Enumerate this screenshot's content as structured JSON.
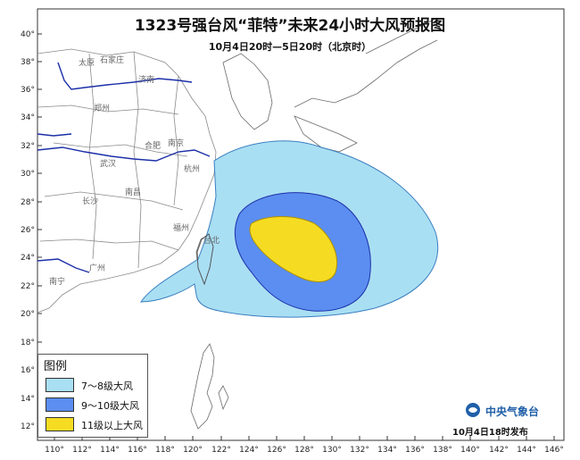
{
  "title": "1323号强台风“菲特”未来24小时大风预报图",
  "subtitle": "10月4日20时—5日20时（北京时）",
  "legend": {
    "title": "图例",
    "items": [
      {
        "label": "7～8级大风",
        "color": "#a9dff3"
      },
      {
        "label": "9～10级大风",
        "color": "#5b8ef0"
      },
      {
        "label": "11级以上大风",
        "color": "#f5dc22"
      }
    ]
  },
  "brand": "中央气象台",
  "issued": "10月4日18时发布",
  "axes": {
    "lon_ticks": [
      "110°",
      "112°",
      "114°",
      "116°",
      "118°",
      "120°",
      "122°",
      "124°",
      "126°",
      "128°",
      "130°",
      "132°",
      "134°",
      "136°",
      "138°",
      "140°",
      "142°",
      "144°",
      "146°"
    ],
    "lat_ticks": [
      "12°",
      "14°",
      "16°",
      "18°",
      "20°",
      "22°",
      "24°",
      "26°",
      "28°",
      "30°",
      "32°",
      "34°",
      "36°",
      "38°",
      "40°"
    ]
  },
  "cities": [
    "太原",
    "石家庄",
    "济南",
    "郑州",
    "合肥",
    "南京",
    "武汉",
    "杭州",
    "南昌",
    "长沙",
    "福州",
    "台北",
    "广州",
    "南宁"
  ],
  "colors": {
    "land_border": "#8a8a8a",
    "river": "#1c2fa8",
    "coast": "#4a4a4a",
    "wind78": "#a9dff3",
    "wind910": "#5b8ef0",
    "wind11": "#f5dc22"
  }
}
